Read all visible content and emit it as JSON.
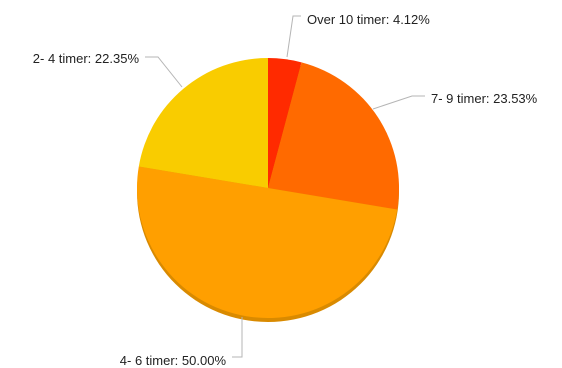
{
  "chart_data": {
    "type": "pie",
    "title": "",
    "legend": "none",
    "slices": [
      {
        "label": "Over 10 timer: 4.12%",
        "value": 4.12,
        "color": "#ff2a00"
      },
      {
        "label": "7- 9 timer: 23.53%",
        "value": 23.53,
        "color": "#ff6a00"
      },
      {
        "label": "4- 6 timer: 50.00%",
        "value": 50.0,
        "color": "#ff9f00"
      },
      {
        "label": "2- 4 timer: 22.35%",
        "value": 22.35,
        "color": "#f9cc00"
      }
    ]
  }
}
